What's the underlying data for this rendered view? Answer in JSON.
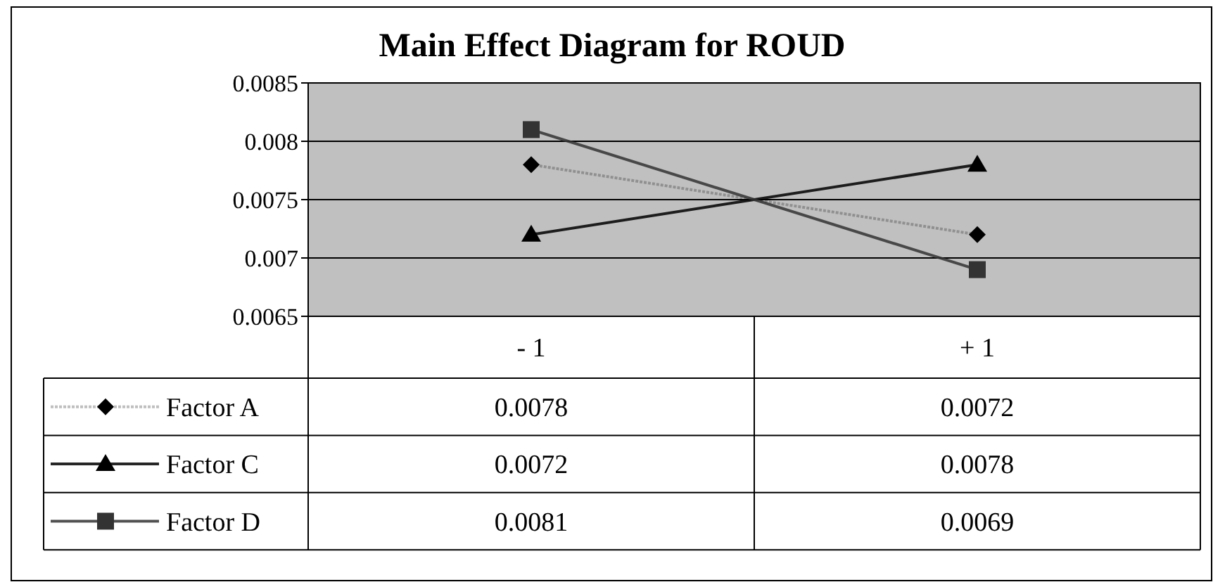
{
  "chart_data": {
    "type": "line",
    "title": "Main Effect Diagram for ROUD",
    "categories": [
      "- 1",
      "+ 1"
    ],
    "series": [
      {
        "name": "Factor A",
        "color": "#000000",
        "line_style": "dotted",
        "marker": "diamond",
        "values": [
          0.0078,
          0.0072
        ]
      },
      {
        "name": "Factor C",
        "color": "#000000",
        "line_style": "solid",
        "marker": "triangle",
        "values": [
          0.0072,
          0.0078
        ]
      },
      {
        "name": "Factor D",
        "color": "#333333",
        "line_style": "solid",
        "marker": "square",
        "values": [
          0.0081,
          0.0069
        ]
      }
    ],
    "ylim": [
      0.0065,
      0.0085
    ],
    "yticks": [
      0.0065,
      0.007,
      0.0075,
      0.008,
      0.0085
    ],
    "grid": "y",
    "legend": "bottom left",
    "data_labels": true
  }
}
